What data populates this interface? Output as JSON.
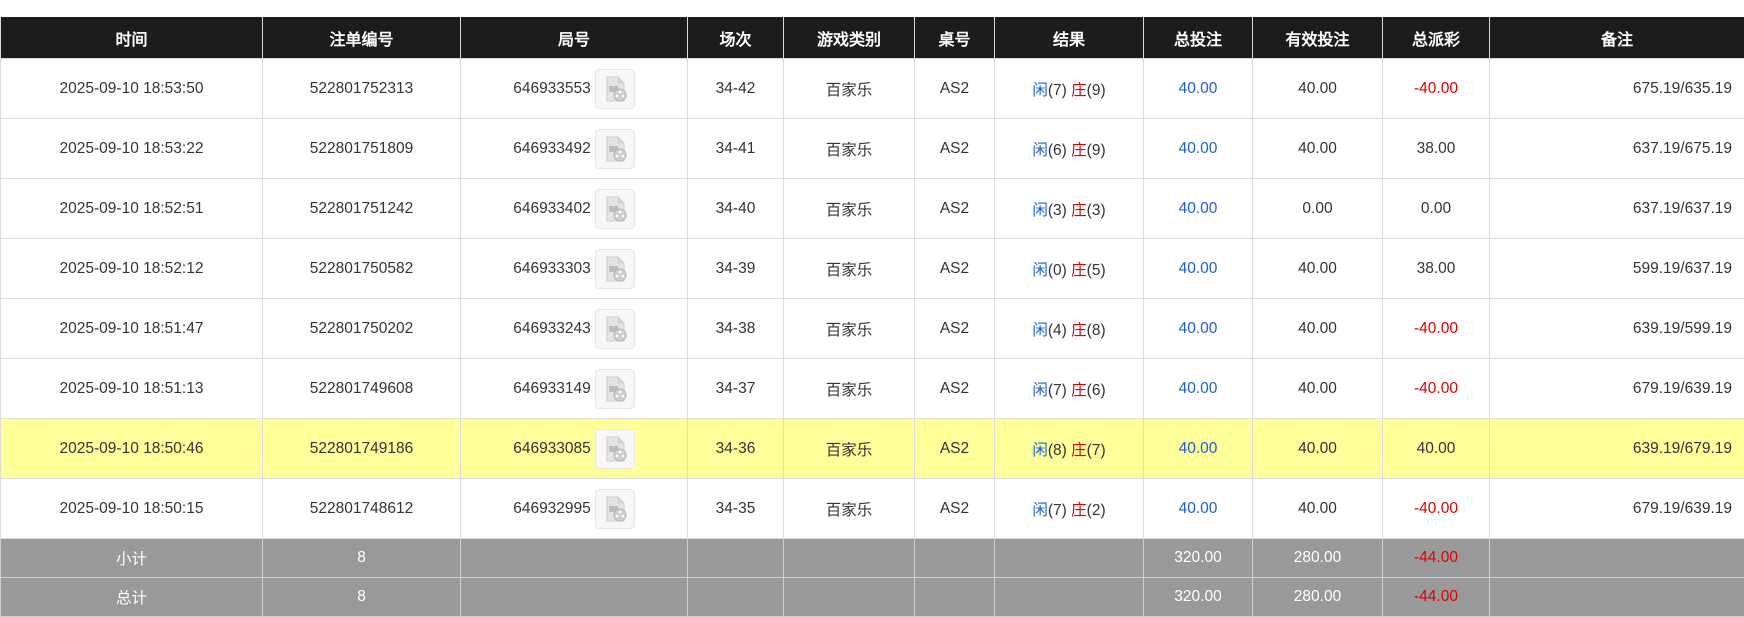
{
  "headers": [
    "时间",
    "注单编号",
    "局号",
    "场次",
    "游戏类别",
    "桌号",
    "结果",
    "总投注",
    "有效投注",
    "总派彩",
    "备注"
  ],
  "colors": {
    "header_bg": "#1c1c1c",
    "highlight_bg": "#ffff99",
    "summary_bg": "#999999",
    "blue": "#1a5fd6",
    "red": "#e00000"
  },
  "rows": [
    {
      "time": "2025-09-10 18:53:50",
      "bet_id": "522801752313",
      "round": "646933553",
      "session": "34-42",
      "game": "百家乐",
      "table": "AS2",
      "player_label": "闲",
      "player": "(7)",
      "banker_label": "庄",
      "banker": "(9)",
      "total_bet": "40.00",
      "valid_bet": "40.00",
      "payout": "-40.00",
      "payout_negative": true,
      "remark": "675.19/635.19",
      "highlighted": false
    },
    {
      "time": "2025-09-10 18:53:22",
      "bet_id": "522801751809",
      "round": "646933492",
      "session": "34-41",
      "game": "百家乐",
      "table": "AS2",
      "player_label": "闲",
      "player": "(6)",
      "banker_label": "庄",
      "banker": "(9)",
      "total_bet": "40.00",
      "valid_bet": "40.00",
      "payout": "38.00",
      "payout_negative": false,
      "remark": "637.19/675.19",
      "highlighted": false
    },
    {
      "time": "2025-09-10 18:52:51",
      "bet_id": "522801751242",
      "round": "646933402",
      "session": "34-40",
      "game": "百家乐",
      "table": "AS2",
      "player_label": "闲",
      "player": "(3)",
      "banker_label": "庄",
      "banker": "(3)",
      "total_bet": "40.00",
      "valid_bet": "0.00",
      "payout": "0.00",
      "payout_negative": false,
      "remark": "637.19/637.19",
      "highlighted": false
    },
    {
      "time": "2025-09-10 18:52:12",
      "bet_id": "522801750582",
      "round": "646933303",
      "session": "34-39",
      "game": "百家乐",
      "table": "AS2",
      "player_label": "闲",
      "player": "(0)",
      "banker_label": "庄",
      "banker": "(5)",
      "total_bet": "40.00",
      "valid_bet": "40.00",
      "payout": "38.00",
      "payout_negative": false,
      "remark": "599.19/637.19",
      "highlighted": false
    },
    {
      "time": "2025-09-10 18:51:47",
      "bet_id": "522801750202",
      "round": "646933243",
      "session": "34-38",
      "game": "百家乐",
      "table": "AS2",
      "player_label": "闲",
      "player": "(4)",
      "banker_label": "庄",
      "banker": "(8)",
      "total_bet": "40.00",
      "valid_bet": "40.00",
      "payout": "-40.00",
      "payout_negative": true,
      "remark": "639.19/599.19",
      "highlighted": false
    },
    {
      "time": "2025-09-10 18:51:13",
      "bet_id": "522801749608",
      "round": "646933149",
      "session": "34-37",
      "game": "百家乐",
      "table": "AS2",
      "player_label": "闲",
      "player": "(7)",
      "banker_label": "庄",
      "banker": "(6)",
      "total_bet": "40.00",
      "valid_bet": "40.00",
      "payout": "-40.00",
      "payout_negative": true,
      "remark": "679.19/639.19",
      "highlighted": false
    },
    {
      "time": "2025-09-10 18:50:46",
      "bet_id": "522801749186",
      "round": "646933085",
      "session": "34-36",
      "game": "百家乐",
      "table": "AS2",
      "player_label": "闲",
      "player": "(8)",
      "banker_label": "庄",
      "banker": "(7)",
      "total_bet": "40.00",
      "valid_bet": "40.00",
      "payout": "40.00",
      "payout_negative": false,
      "remark": "639.19/679.19",
      "highlighted": true
    },
    {
      "time": "2025-09-10 18:50:15",
      "bet_id": "522801748612",
      "round": "646932995",
      "session": "34-35",
      "game": "百家乐",
      "table": "AS2",
      "player_label": "闲",
      "player": "(7)",
      "banker_label": "庄",
      "banker": "(2)",
      "total_bet": "40.00",
      "valid_bet": "40.00",
      "payout": "-40.00",
      "payout_negative": true,
      "remark": "679.19/639.19",
      "highlighted": false
    }
  ],
  "summary": [
    {
      "label": "小计",
      "count": "8",
      "total_bet": "320.00",
      "valid_bet": "280.00",
      "payout": "-44.00"
    },
    {
      "label": "总计",
      "count": "8",
      "total_bet": "320.00",
      "valid_bet": "280.00",
      "payout": "-44.00"
    }
  ]
}
